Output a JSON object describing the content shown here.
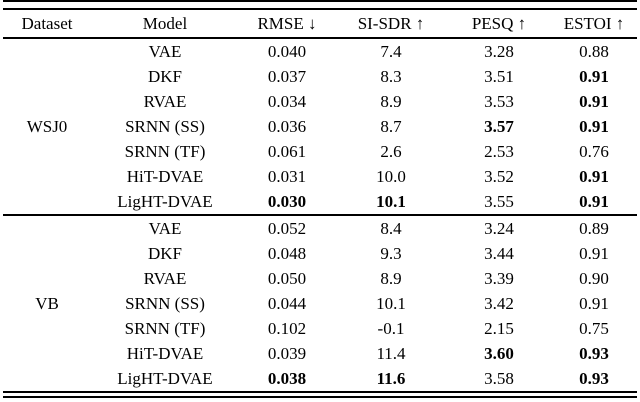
{
  "table": {
    "headers": [
      "Dataset",
      "Model",
      "RMSE ↓",
      "SI-SDR ↑",
      "PESQ ↑",
      "ESTOI ↑"
    ],
    "metric_keys": [
      "rmse",
      "si-sdr",
      "pesq",
      "estoi"
    ],
    "groups": [
      {
        "dataset": "WSJ0",
        "rows": [
          {
            "model": "VAE",
            "values": [
              "0.040",
              "7.4",
              "3.28",
              "0.88"
            ],
            "bold": [
              false,
              false,
              false,
              false
            ]
          },
          {
            "model": "DKF",
            "values": [
              "0.037",
              "8.3",
              "3.51",
              "0.91"
            ],
            "bold": [
              false,
              false,
              false,
              true
            ]
          },
          {
            "model": "RVAE",
            "values": [
              "0.034",
              "8.9",
              "3.53",
              "0.91"
            ],
            "bold": [
              false,
              false,
              false,
              true
            ]
          },
          {
            "model": "SRNN (SS)",
            "values": [
              "0.036",
              "8.7",
              "3.57",
              "0.91"
            ],
            "bold": [
              false,
              false,
              true,
              true
            ]
          },
          {
            "model": "SRNN (TF)",
            "values": [
              "0.061",
              "2.6",
              "2.53",
              "0.76"
            ],
            "bold": [
              false,
              false,
              false,
              false
            ]
          },
          {
            "model": "HiT-DVAE",
            "values": [
              "0.031",
              "10.0",
              "3.52",
              "0.91"
            ],
            "bold": [
              false,
              false,
              false,
              true
            ]
          },
          {
            "model": "LigHT-DVAE",
            "values": [
              "0.030",
              "10.1",
              "3.55",
              "0.91"
            ],
            "bold": [
              true,
              true,
              false,
              true
            ]
          }
        ]
      },
      {
        "dataset": "VB",
        "rows": [
          {
            "model": "VAE",
            "values": [
              "0.052",
              "8.4",
              "3.24",
              "0.89"
            ],
            "bold": [
              false,
              false,
              false,
              false
            ]
          },
          {
            "model": "DKF",
            "values": [
              "0.048",
              "9.3",
              "3.44",
              "0.91"
            ],
            "bold": [
              false,
              false,
              false,
              false
            ]
          },
          {
            "model": "RVAE",
            "values": [
              "0.050",
              "8.9",
              "3.39",
              "0.90"
            ],
            "bold": [
              false,
              false,
              false,
              false
            ]
          },
          {
            "model": "SRNN (SS)",
            "values": [
              "0.044",
              "10.1",
              "3.42",
              "0.91"
            ],
            "bold": [
              false,
              false,
              false,
              false
            ]
          },
          {
            "model": "SRNN (TF)",
            "values": [
              "0.102",
              "-0.1",
              "2.15",
              "0.75"
            ],
            "bold": [
              false,
              false,
              false,
              false
            ]
          },
          {
            "model": "HiT-DVAE",
            "values": [
              "0.039",
              "11.4",
              "3.60",
              "0.93"
            ],
            "bold": [
              false,
              false,
              true,
              true
            ]
          },
          {
            "model": "LigHT-DVAE",
            "values": [
              "0.038",
              "11.6",
              "3.58",
              "0.93"
            ],
            "bold": [
              true,
              true,
              false,
              true
            ]
          }
        ]
      }
    ],
    "colors": {
      "text": "#000000",
      "background": "#ffffff",
      "rule": "#000000"
    }
  }
}
